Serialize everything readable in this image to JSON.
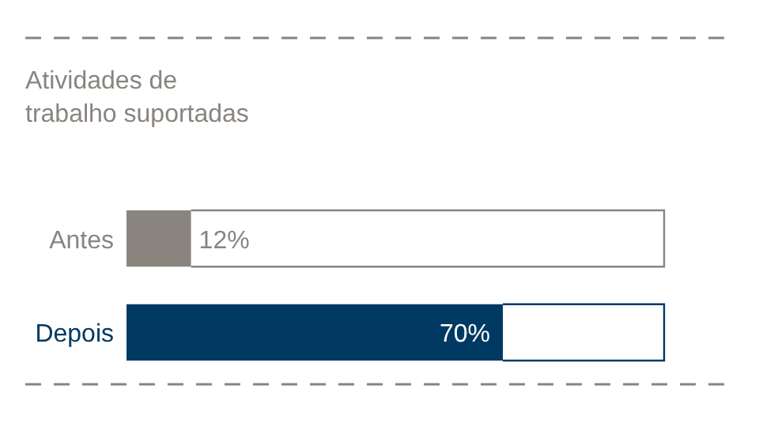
{
  "chart_data": {
    "type": "bar",
    "orientation": "horizontal",
    "title": "Atividades de\ntrabalho suportadas",
    "categories": [
      "Antes",
      "Depois"
    ],
    "values": [
      12,
      70
    ],
    "colors": [
      "#8a847f",
      "#003a63"
    ],
    "value_labels": [
      "12%",
      "70%"
    ],
    "xlim": [
      0,
      100
    ]
  }
}
